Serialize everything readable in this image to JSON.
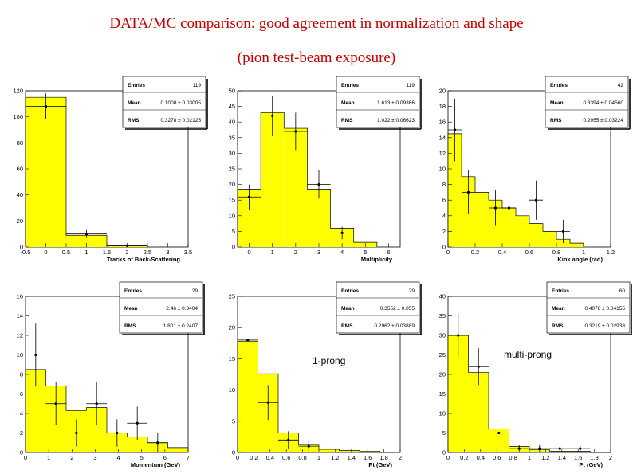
{
  "page": {
    "title_line1": "DATA/MC comparison: good agreement in normalization and shape",
    "title_line2": "(pion test-beam exposure)"
  },
  "colors": {
    "title": "#c00000",
    "fill": "#ffff00",
    "edge": "#000000"
  },
  "chart_data": [
    {
      "id": "p1",
      "type": "bar",
      "title": "",
      "xlabel": "Tracks of Back-Scattering",
      "ylabel": "",
      "xlim": [
        -0.5,
        3.5
      ],
      "ylim": [
        0,
        120
      ],
      "xticks": [
        -0.5,
        0,
        0.5,
        1,
        1.5,
        2,
        2.5,
        3,
        3.5
      ],
      "xtick_labels": [
        "-0.5",
        "0",
        "0.5",
        "1",
        "1.5",
        "2",
        "2.5",
        "3",
        "3.5"
      ],
      "yticks": [
        0,
        20,
        40,
        60,
        80,
        100,
        120
      ],
      "ytick_labels": [
        "0",
        "20",
        "40",
        "60",
        "80",
        "100",
        "120"
      ],
      "mc": {
        "edges": [
          -0.5,
          0.5,
          1.5,
          2.5
        ],
        "values": [
          115,
          9,
          1
        ]
      },
      "data": {
        "x": [
          0,
          1,
          2
        ],
        "y": [
          108,
          10,
          1
        ],
        "yerr": [
          10,
          3,
          1
        ],
        "xerr": 0.5
      },
      "stats": {
        "entries_label": "Entries",
        "entries": "119",
        "mean_label": "Mean",
        "mean": "0.1008 ± 0.03005",
        "rms_label": "RMS",
        "rms": "0.3278 ± 0.02125"
      }
    },
    {
      "id": "p2",
      "type": "bar",
      "title": "",
      "xlabel": "Multiplicity",
      "ylabel": "",
      "xlim": [
        -0.5,
        6.5
      ],
      "ylim": [
        0,
        50
      ],
      "xticks": [
        0,
        1,
        2,
        3,
        4,
        5,
        6
      ],
      "xtick_labels": [
        "0",
        "1",
        "2",
        "3",
        "4",
        "5",
        "6"
      ],
      "yticks": [
        0,
        5,
        10,
        15,
        20,
        25,
        30,
        35,
        40,
        45,
        50
      ],
      "ytick_labels": [
        "0",
        "5",
        "10",
        "15",
        "20",
        "25",
        "30",
        "35",
        "40",
        "45",
        "50"
      ],
      "mc": {
        "edges": [
          -0.5,
          0.5,
          1.5,
          2.5,
          3.5,
          4.5,
          5.5
        ],
        "values": [
          18.5,
          43,
          38,
          18.5,
          6,
          1.5
        ]
      },
      "data": {
        "x": [
          0,
          1,
          2,
          3,
          4
        ],
        "y": [
          16,
          42,
          37,
          20,
          4.5
        ],
        "yerr": [
          4,
          6.5,
          6,
          4.5,
          2
        ],
        "xerr": 0.5
      },
      "stats": {
        "entries_label": "Entries",
        "entries": "119",
        "mean_label": "Mean",
        "mean": "1.613 ± 0.09366",
        "rms_label": "RMS",
        "rms": "1.022 ± 0.06623"
      }
    },
    {
      "id": "p3",
      "type": "bar",
      "title": "",
      "xlabel": "Kink angle (rad)",
      "ylabel": "",
      "xlim": [
        0,
        1.2
      ],
      "ylim": [
        0,
        20
      ],
      "xticks": [
        0,
        0.2,
        0.4,
        0.6,
        0.8,
        1,
        1.2
      ],
      "xtick_labels": [
        "0",
        "0.2",
        "0.4",
        "0.6",
        "0.8",
        "1",
        "1.2"
      ],
      "yticks": [
        0,
        2,
        4,
        6,
        8,
        10,
        12,
        14,
        16,
        18,
        20
      ],
      "ytick_labels": [
        "0",
        "2",
        "4",
        "6",
        "8",
        "10",
        "12",
        "14",
        "16",
        "18",
        "20"
      ],
      "mc": {
        "edges": [
          0,
          0.1,
          0.2,
          0.3,
          0.4,
          0.5,
          0.6,
          0.7,
          0.8,
          0.9,
          1.0
        ],
        "values": [
          14.5,
          9,
          7,
          6,
          5,
          4,
          3,
          2,
          1,
          0.5
        ]
      },
      "data": {
        "x": [
          0.05,
          0.15,
          0.35,
          0.45,
          0.65,
          0.85
        ],
        "y": [
          15,
          7,
          5,
          5,
          6,
          2
        ],
        "yerr": [
          4,
          2.8,
          2.3,
          2.3,
          2.5,
          1.5
        ],
        "xerr": 0.05
      },
      "stats": {
        "entries_label": "Entries",
        "entries": "42",
        "mean_label": "Mean",
        "mean": "0.3394 ± 0.04560",
        "rms_label": "RMS",
        "rms": "0.2955 ± 0.03224"
      }
    },
    {
      "id": "p4",
      "type": "bar",
      "title": "",
      "xlabel": "Momentum (GeV)",
      "ylabel": "",
      "xlim": [
        0,
        7
      ],
      "ylim": [
        0,
        16
      ],
      "xticks": [
        0,
        1,
        2,
        3,
        4,
        5,
        6,
        7
      ],
      "xtick_labels": [
        "0",
        "1",
        "2",
        "3",
        "4",
        "5",
        "6",
        "7"
      ],
      "yticks": [
        0,
        2,
        4,
        6,
        8,
        10,
        12,
        14,
        16
      ],
      "ytick_labels": [
        "0",
        "2",
        "4",
        "6",
        "8",
        "10",
        "12",
        "14",
        "16"
      ],
      "mc": {
        "edges": [
          0,
          0.875,
          1.75,
          2.625,
          3.5,
          4.375,
          5.25,
          6.125,
          7.0
        ],
        "values": [
          8.5,
          6.8,
          4.3,
          4.6,
          2,
          1.6,
          1.0,
          0.5
        ]
      },
      "data": {
        "x": [
          0.44,
          1.31,
          2.19,
          3.06,
          3.94,
          4.81,
          5.69
        ],
        "y": [
          10,
          5,
          2,
          5,
          2,
          3,
          1
        ],
        "yerr": [
          3.2,
          2.2,
          1.4,
          2.2,
          1.4,
          1.7,
          1.0
        ],
        "xerr": 0.44
      },
      "stats": {
        "entries_label": "Entries",
        "entries": "29",
        "mean_label": "Mean",
        "mean": "2.46 ± 0.3404",
        "rms_label": "RMS",
        "rms": "1.801 ± 0.2407"
      }
    },
    {
      "id": "p5",
      "type": "bar",
      "title": "",
      "xlabel": "Pt (GeV)",
      "ylabel": "",
      "xlim": [
        0,
        2
      ],
      "ylim": [
        0,
        25
      ],
      "xticks": [
        0,
        0.2,
        0.4,
        0.6,
        0.8,
        1,
        1.2,
        1.4,
        1.6,
        1.8,
        2
      ],
      "xtick_labels": [
        "0",
        "0.2",
        "0.4",
        "0.6",
        "0.8",
        "1",
        "1.2",
        "1.4",
        "1.6",
        "1.8",
        "2"
      ],
      "yticks": [
        0,
        5,
        10,
        15,
        20,
        25
      ],
      "ytick_labels": [
        "0",
        "5",
        "10",
        "15",
        "20",
        "25"
      ],
      "mc": {
        "edges": [
          0,
          0.25,
          0.5,
          0.75,
          1.0,
          1.25,
          1.5,
          1.75,
          2.0
        ],
        "values": [
          17.8,
          12.6,
          3.1,
          1.3,
          0.5,
          0.3,
          0.2,
          0
        ]
      },
      "data": {
        "x": [
          0.125,
          0.375,
          0.625,
          0.875
        ],
        "y": [
          18,
          8,
          2,
          1
        ],
        "yerr": [
          0,
          2.8,
          1.4,
          1.0
        ],
        "xerr": 0.125
      },
      "annotation": "1-prong",
      "stats": {
        "entries_label": "Entries",
        "entries": "29",
        "mean_label": "Mean",
        "mean": "0.3552 ± 0.055",
        "rms_label": "RMS",
        "rms": "0.2962 ± 0.03889"
      }
    },
    {
      "id": "p6",
      "type": "bar",
      "title": "",
      "xlabel": "Pt (GeV)",
      "ylabel": "",
      "xlim": [
        0,
        2
      ],
      "ylim": [
        0,
        40
      ],
      "xticks": [
        0,
        0.2,
        0.4,
        0.6,
        0.8,
        1,
        1.2,
        1.4,
        1.6,
        1.8,
        2
      ],
      "xtick_labels": [
        "0",
        "0.2",
        "0.4",
        "0.6",
        "0.8",
        "1",
        "1.2",
        "1.4",
        "1.6",
        "1.8",
        "2"
      ],
      "yticks": [
        0,
        5,
        10,
        15,
        20,
        25,
        30,
        35,
        40
      ],
      "ytick_labels": [
        "0",
        "5",
        "10",
        "15",
        "20",
        "25",
        "30",
        "35",
        "40"
      ],
      "mc": {
        "edges": [
          0,
          0.25,
          0.5,
          0.75,
          1.0,
          1.25,
          1.5,
          1.75,
          2.0
        ],
        "values": [
          30,
          20.5,
          6,
          1.5,
          0.7,
          0.3,
          0.3,
          0
        ]
      },
      "data": {
        "x": [
          0.125,
          0.375,
          0.625,
          0.875,
          1.125,
          1.375,
          1.625
        ],
        "y": [
          30,
          22,
          5,
          1,
          1,
          1,
          1
        ],
        "yerr": [
          5.5,
          4.7,
          0,
          1,
          1,
          0,
          1
        ],
        "xerr": 0.125
      },
      "annotation": "multi-prong",
      "stats": {
        "entries_label": "Entries",
        "entries": "60",
        "mean_label": "Mean",
        "mean": "0.4078 ± 0.04155",
        "rms_label": "RMS",
        "rms": "0.3219 ± 0.02938"
      }
    }
  ]
}
